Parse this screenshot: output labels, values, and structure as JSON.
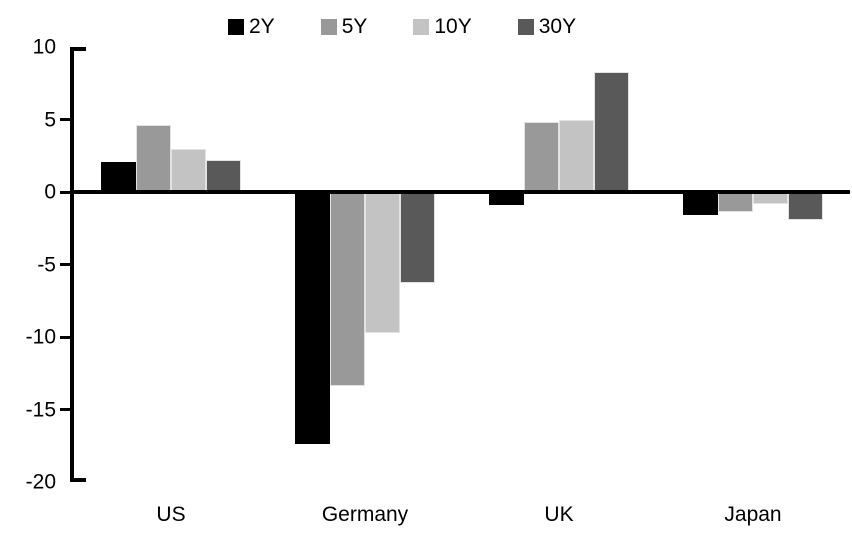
{
  "chart_data": {
    "type": "bar",
    "title": "",
    "categories": [
      "US",
      "Germany",
      "UK",
      "Japan"
    ],
    "series": [
      {
        "name": "2Y",
        "color": "#000000",
        "values": [
          2.1,
          -17.4,
          -0.9,
          -1.6
        ]
      },
      {
        "name": "5Y",
        "color": "#999999",
        "values": [
          4.6,
          -13.4,
          4.8,
          -1.4
        ]
      },
      {
        "name": "10Y",
        "color": "#c3c3c3",
        "values": [
          3.0,
          -9.7,
          5.0,
          -0.8
        ]
      },
      {
        "name": "30Y",
        "color": "#595959",
        "values": [
          2.2,
          -6.3,
          8.3,
          -1.9
        ]
      }
    ],
    "ylim": [
      -20,
      10
    ],
    "yticks": [
      10,
      5,
      0,
      -5,
      -10,
      -15,
      -20
    ],
    "ytick_interval": 5,
    "grid": false,
    "legend_position": "top",
    "axis_color": "#000000",
    "background_color": "#ffffff"
  }
}
